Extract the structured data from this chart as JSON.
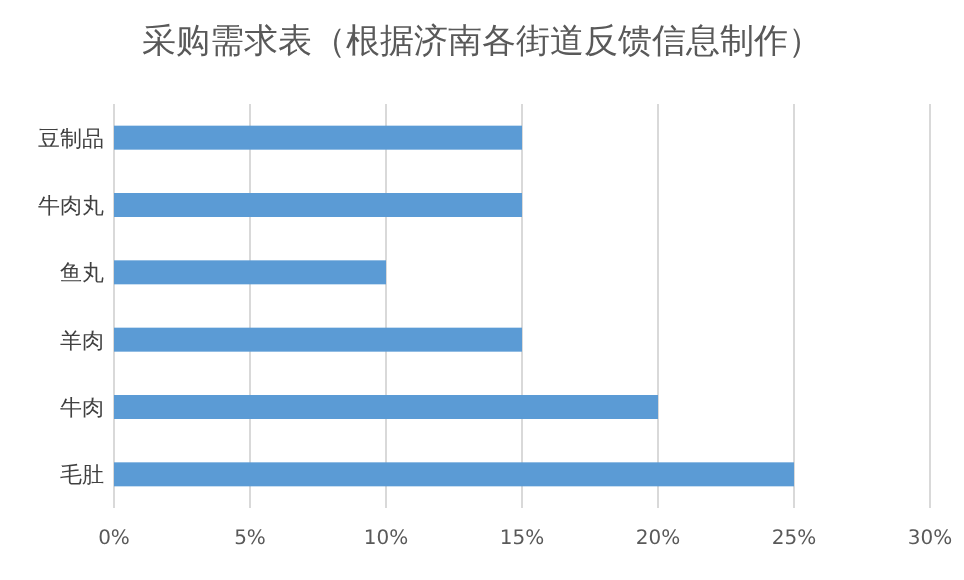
{
  "chart_data": {
    "type": "bar",
    "orientation": "horizontal",
    "title": "采购需求表（根据济南各街道反馈信息制作）",
    "categories": [
      "豆制品",
      "牛肉丸",
      "鱼丸",
      "羊肉",
      "牛肉",
      "毛肚"
    ],
    "values": [
      15,
      15,
      10,
      15,
      20,
      25
    ],
    "color": "#5b9bd5",
    "xlim": [
      0,
      30
    ],
    "xticks": [
      {
        "value": 0,
        "label": "0%"
      },
      {
        "value": 5,
        "label": "5%"
      },
      {
        "value": 10,
        "label": "10%"
      },
      {
        "value": 15,
        "label": "15%"
      },
      {
        "value": 20,
        "label": "20%"
      },
      {
        "value": 25,
        "label": "25%"
      },
      {
        "value": 30,
        "label": "30%"
      }
    ],
    "grid": "x"
  }
}
